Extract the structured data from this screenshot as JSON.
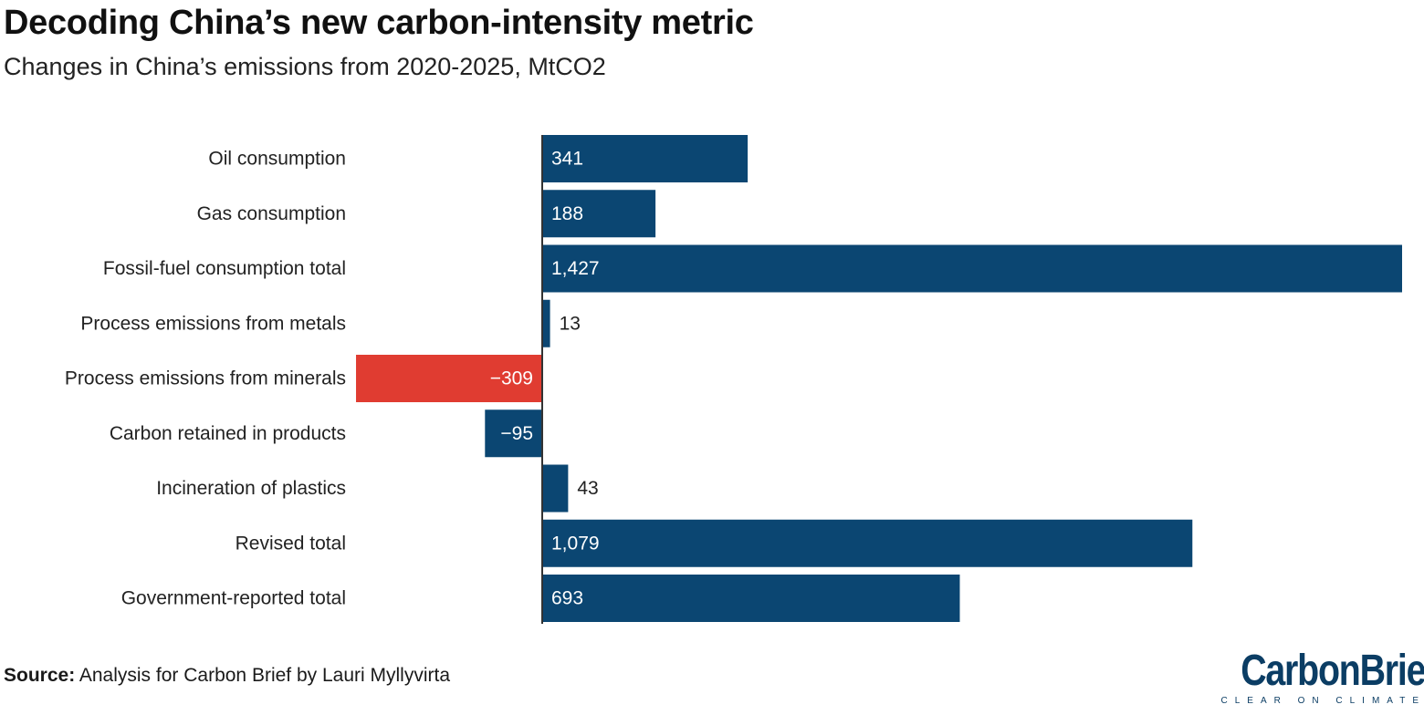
{
  "header": {
    "title": "Decoding China’s new carbon-intensity metric",
    "subtitle": "Changes in China’s emissions from 2020-2025, MtCO2"
  },
  "footer": {
    "source_label": "Source:",
    "source_text": " Analysis for Carbon Brief by Lauri Myllyvirta",
    "logo_text": "CarbonBrief",
    "logo_tagline": "CLEAR ON CLIMATE"
  },
  "colors": {
    "bar_default": "#0b4672",
    "bar_highlight": "#e03c31",
    "axis": "#333333",
    "label_inside": "#ffffff",
    "label_outside": "#222222"
  },
  "chart_data": {
    "type": "bar",
    "orientation": "horizontal",
    "title": "Decoding China’s new carbon-intensity metric",
    "subtitle": "Changes in China’s emissions from 2020-2025, MtCO2",
    "categories": [
      "Oil consumption",
      "Gas consumption",
      "Fossil-fuel consumption total",
      "Process emissions from metals",
      "Process emissions from minerals",
      "Carbon retained in products",
      "Incineration of plastics",
      "Revised total",
      "Government-reported total"
    ],
    "values": [
      341,
      188,
      1427,
      13,
      -309,
      -95,
      43,
      1079,
      693
    ],
    "value_labels": [
      "341",
      "188",
      "1,427",
      "13",
      "−309",
      "−95",
      "43",
      "1,079",
      "693"
    ],
    "highlight_index": 4,
    "xlim": [
      -309,
      1427
    ],
    "grid": false,
    "legend": "none"
  }
}
